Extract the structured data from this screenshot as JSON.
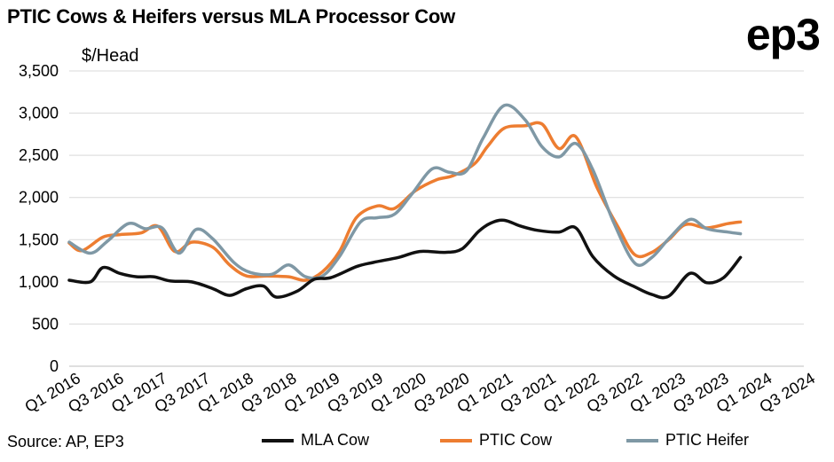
{
  "title": "PTIC Cows & Heifers versus MLA Processor Cow",
  "logo": "ep3",
  "source": "Source: AP, EP3",
  "chart_data": {
    "type": "line",
    "ylabel": "$/Head",
    "ylim": [
      0,
      3500
    ],
    "yticks": [
      0,
      500,
      1000,
      1500,
      2000,
      2500,
      3000,
      3500
    ],
    "ytick_labels": [
      "0",
      "500",
      "1,000",
      "1,500",
      "2,000",
      "2,500",
      "3,000",
      "3,500"
    ],
    "xtick_labels": [
      "Q1 2016",
      "Q3 2016",
      "Q1 2017",
      "Q3 2017",
      "Q1 2018",
      "Q3 2018",
      "Q1 2019",
      "Q3 2019",
      "Q1 2020",
      "Q3 2020",
      "Q1 2021",
      "Q3 2021",
      "Q1 2022",
      "Q3 2022",
      "Q1 2023",
      "Q3 2023",
      "Q1 2024",
      "Q3 2024"
    ],
    "x_range": [
      2016.0,
      2024.7
    ],
    "grid": "horizontal",
    "legend_position": "bottom",
    "series": [
      {
        "name": "MLA Cow",
        "color": "#111111",
        "points": [
          [
            2016.0,
            1020
          ],
          [
            2016.25,
            1000
          ],
          [
            2016.4,
            1170
          ],
          [
            2016.6,
            1100
          ],
          [
            2016.8,
            1060
          ],
          [
            2017.0,
            1060
          ],
          [
            2017.2,
            1010
          ],
          [
            2017.45,
            1000
          ],
          [
            2017.7,
            920
          ],
          [
            2017.9,
            840
          ],
          [
            2018.1,
            920
          ],
          [
            2018.3,
            950
          ],
          [
            2018.45,
            820
          ],
          [
            2018.7,
            890
          ],
          [
            2018.9,
            1030
          ],
          [
            2019.1,
            1050
          ],
          [
            2019.4,
            1180
          ],
          [
            2019.6,
            1230
          ],
          [
            2019.9,
            1290
          ],
          [
            2020.15,
            1360
          ],
          [
            2020.45,
            1350
          ],
          [
            2020.65,
            1390
          ],
          [
            2020.85,
            1600
          ],
          [
            2021.0,
            1700
          ],
          [
            2021.15,
            1730
          ],
          [
            2021.35,
            1660
          ],
          [
            2021.55,
            1610
          ],
          [
            2021.8,
            1590
          ],
          [
            2022.0,
            1640
          ],
          [
            2022.2,
            1300
          ],
          [
            2022.45,
            1070
          ],
          [
            2022.7,
            940
          ],
          [
            2022.9,
            850
          ],
          [
            2023.1,
            830
          ],
          [
            2023.35,
            1100
          ],
          [
            2023.55,
            990
          ],
          [
            2023.75,
            1050
          ],
          [
            2023.95,
            1290
          ]
        ]
      },
      {
        "name": "PTIC Cow",
        "color": "#ED7D31",
        "points": [
          [
            2016.0,
            1460
          ],
          [
            2016.15,
            1370
          ],
          [
            2016.4,
            1530
          ],
          [
            2016.6,
            1560
          ],
          [
            2016.85,
            1580
          ],
          [
            2017.05,
            1660
          ],
          [
            2017.25,
            1360
          ],
          [
            2017.45,
            1470
          ],
          [
            2017.7,
            1410
          ],
          [
            2017.9,
            1200
          ],
          [
            2018.1,
            1070
          ],
          [
            2018.35,
            1070
          ],
          [
            2018.6,
            1060
          ],
          [
            2018.8,
            1020
          ],
          [
            2019.0,
            1120
          ],
          [
            2019.2,
            1360
          ],
          [
            2019.4,
            1760
          ],
          [
            2019.65,
            1900
          ],
          [
            2019.85,
            1870
          ],
          [
            2020.1,
            2080
          ],
          [
            2020.35,
            2210
          ],
          [
            2020.55,
            2260
          ],
          [
            2020.8,
            2400
          ],
          [
            2020.95,
            2600
          ],
          [
            2021.15,
            2820
          ],
          [
            2021.4,
            2850
          ],
          [
            2021.6,
            2870
          ],
          [
            2021.8,
            2580
          ],
          [
            2022.0,
            2720
          ],
          [
            2022.25,
            2120
          ],
          [
            2022.5,
            1650
          ],
          [
            2022.7,
            1320
          ],
          [
            2022.9,
            1350
          ],
          [
            2023.1,
            1500
          ],
          [
            2023.3,
            1680
          ],
          [
            2023.55,
            1640
          ],
          [
            2023.8,
            1690
          ],
          [
            2023.95,
            1710
          ]
        ]
      },
      {
        "name": "PTIC Heifer",
        "color": "#7F98A5",
        "points": [
          [
            2016.0,
            1470
          ],
          [
            2016.25,
            1340
          ],
          [
            2016.45,
            1480
          ],
          [
            2016.7,
            1690
          ],
          [
            2016.9,
            1630
          ],
          [
            2017.1,
            1640
          ],
          [
            2017.3,
            1340
          ],
          [
            2017.5,
            1620
          ],
          [
            2017.7,
            1510
          ],
          [
            2017.95,
            1230
          ],
          [
            2018.15,
            1110
          ],
          [
            2018.4,
            1090
          ],
          [
            2018.6,
            1200
          ],
          [
            2018.8,
            1060
          ],
          [
            2019.0,
            1070
          ],
          [
            2019.2,
            1300
          ],
          [
            2019.45,
            1710
          ],
          [
            2019.65,
            1760
          ],
          [
            2019.85,
            1800
          ],
          [
            2020.05,
            2030
          ],
          [
            2020.3,
            2340
          ],
          [
            2020.5,
            2300
          ],
          [
            2020.7,
            2310
          ],
          [
            2020.9,
            2700
          ],
          [
            2021.15,
            3090
          ],
          [
            2021.4,
            2920
          ],
          [
            2021.6,
            2600
          ],
          [
            2021.8,
            2480
          ],
          [
            2022.0,
            2640
          ],
          [
            2022.2,
            2330
          ],
          [
            2022.45,
            1700
          ],
          [
            2022.7,
            1220
          ],
          [
            2022.9,
            1290
          ],
          [
            2023.1,
            1510
          ],
          [
            2023.35,
            1740
          ],
          [
            2023.55,
            1630
          ],
          [
            2023.8,
            1590
          ],
          [
            2023.95,
            1570
          ]
        ]
      }
    ]
  }
}
